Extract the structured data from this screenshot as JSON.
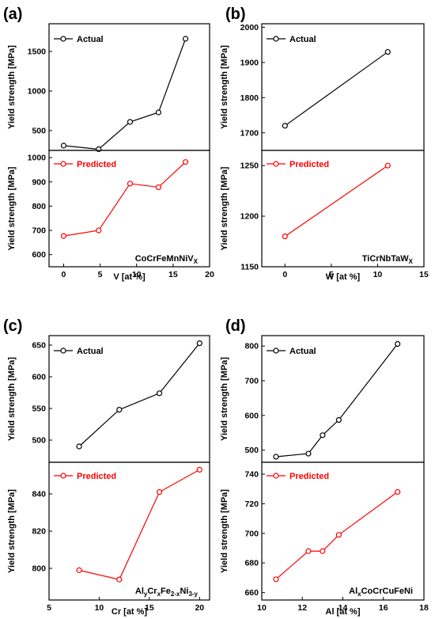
{
  "chart_data": [
    {
      "panel": "(a)",
      "type": "line",
      "xlabel": "V [at %]",
      "xlim": [
        -2,
        20
      ],
      "xticks": [
        0,
        5,
        10,
        15,
        20
      ],
      "alloy_label": {
        "base": "CoCrFeMnNiV",
        "sub": "X"
      },
      "top": {
        "ylabel": "Yield strength [MPa]",
        "ylim": [
          250,
          1850
        ],
        "yticks": [
          500,
          1000,
          1500
        ],
        "series": [
          {
            "name": "Actual",
            "color": "#000000",
            "x": [
              0,
              4.8,
              9.1,
              13.0,
              16.7
            ],
            "y": [
              310,
              265,
              610,
              730,
              1660
            ]
          }
        ]
      },
      "bottom": {
        "ylabel": "Yield strength [MPa]",
        "ylim": [
          550,
          1030
        ],
        "yticks": [
          600,
          700,
          800,
          900,
          1000
        ],
        "series": [
          {
            "name": "Predicted",
            "color": "#ff0000",
            "x": [
              0,
              4.8,
              9.1,
              13.0,
              16.7
            ],
            "y": [
              677,
              700,
              893,
              878,
              982
            ]
          }
        ]
      }
    },
    {
      "panel": "(b)",
      "type": "line",
      "xlabel": "W [at %]",
      "xlim": [
        -2.5,
        15
      ],
      "xticks": [
        0,
        5,
        10,
        15
      ],
      "alloy_label": {
        "base": "TiCrNbTaW",
        "sub": "X"
      },
      "top": {
        "ylabel": "Yield strength [MPa]",
        "ylim": [
          1650,
          2010
        ],
        "yticks": [
          1700,
          1800,
          1900,
          2000
        ],
        "series": [
          {
            "name": "Actual",
            "color": "#000000",
            "x": [
              0,
              11.1
            ],
            "y": [
              1720,
              1930
            ]
          }
        ]
      },
      "bottom": {
        "ylabel": "Yield strength [MPa]",
        "ylim": [
          1150,
          1265
        ],
        "yticks": [
          1150,
          1200,
          1250
        ],
        "series": [
          {
            "name": "Predicted",
            "color": "#ff0000",
            "x": [
              0,
              11.1
            ],
            "y": [
              1180,
              1250
            ]
          }
        ]
      }
    },
    {
      "panel": "(c)",
      "type": "line",
      "xlabel": "Cr [at %]",
      "xlim": [
        5,
        21
      ],
      "xticks": [
        5,
        10,
        15,
        20
      ],
      "alloy_label": {
        "parts": [
          [
            "Al",
            ""
          ],
          [
            "y",
            "sub"
          ],
          [
            "Cr",
            ""
          ],
          [
            "x",
            "sub"
          ],
          [
            "Fe",
            ""
          ],
          [
            "2-x",
            "sub"
          ],
          [
            "Ni",
            ""
          ],
          [
            "3-y",
            "sub"
          ]
        ]
      },
      "top": {
        "ylabel": "Yield strength [MPa]",
        "ylim": [
          465,
          665
        ],
        "yticks": [
          500,
          550,
          600,
          650
        ],
        "series": [
          {
            "name": "Actual",
            "color": "#000000",
            "x": [
              8.0,
              12.0,
              16.0,
              20.0
            ],
            "y": [
              490,
              548,
              574,
              653
            ]
          }
        ]
      },
      "bottom": {
        "ylabel": "Yield strength [MPa]",
        "ylim": [
          783,
          857
        ],
        "yticks": [
          800,
          820,
          840
        ],
        "series": [
          {
            "name": "Predicted",
            "color": "#ff0000",
            "x": [
              8.0,
              12.0,
              16.0,
              20.0
            ],
            "y": [
              799,
              794,
              841,
              853
            ]
          }
        ]
      }
    },
    {
      "panel": "(d)",
      "type": "line",
      "xlabel": "Al [at %]",
      "xlim": [
        10,
        18
      ],
      "xticks": [
        10,
        12,
        14,
        16,
        18
      ],
      "alloy_label": {
        "parts": [
          [
            "Al",
            ""
          ],
          [
            "x",
            "sub"
          ],
          [
            "CoCrCuFeNi",
            ""
          ]
        ]
      },
      "top": {
        "ylabel": "Yield strength [MPa]",
        "ylim": [
          465,
          830
        ],
        "yticks": [
          500,
          600,
          700,
          800
        ],
        "series": [
          {
            "name": "Actual",
            "color": "#000000",
            "x": [
              10.7,
              12.3,
              13.0,
              13.8,
              16.7
            ],
            "y": [
              481,
              490,
              543,
              587,
              806
            ]
          }
        ]
      },
      "bottom": {
        "ylabel": "Yield strength [MPa]",
        "ylim": [
          655,
          748
        ],
        "yticks": [
          660,
          680,
          700,
          720,
          740
        ],
        "series": [
          {
            "name": "Predicted",
            "color": "#ff0000",
            "x": [
              10.7,
              12.3,
              13.0,
              13.8,
              16.7
            ],
            "y": [
              669,
              688,
              688,
              699,
              728
            ]
          }
        ]
      }
    }
  ]
}
